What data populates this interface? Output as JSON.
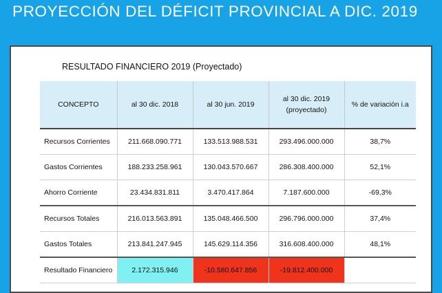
{
  "headline": "PROYECCIÓN DEL DÉFICIT PROVINCIAL A DIC. 2019",
  "table_title": "RESULTADO FINANCIERO 2019 (Proyectado)",
  "columns": [
    "CONCEPTO",
    "al 30 dic. 2018",
    "al 30 jun. 2019",
    "al 30 dic. 2019 (proyectado)",
    "% de variación i.a"
  ],
  "rows": [
    {
      "concepto": "Recursos Corrientes",
      "dic2018": "211.668.090.771",
      "jun2019": "133.513.988.531",
      "dic2019": "293.496.000.000",
      "var": "38,7%"
    },
    {
      "concepto": "Gastos Corrientes",
      "dic2018": "188.233.258.961",
      "jun2019": "130.043.570.667",
      "dic2019": "286.308.400.000",
      "var": "52,1%"
    },
    {
      "concepto": "Ahorro Corriente",
      "dic2018": "23.434.831.811",
      "jun2019": "3.470.417.864",
      "dic2019": "7.187.600.000",
      "var": "-69,3%"
    },
    {
      "concepto": "Recursos Totales",
      "dic2018": "216.013.563.891",
      "jun2019": "135.048.466.500",
      "dic2019": "296.796.000.000",
      "var": "37,4%"
    },
    {
      "concepto": "Gastos Totales",
      "dic2018": "213.841.247.945",
      "jun2019": "145.629.114.356",
      "dic2019": "316.608.400.000",
      "var": "48,1%"
    },
    {
      "concepto": "Resultado Financiero",
      "dic2018": "2.172.315.946",
      "jun2019": "-10.580.647.856",
      "dic2019": "-19.812.400.000",
      "var": ""
    }
  ],
  "colors": {
    "background": "#18a3e6",
    "header_fill": "#d7eef9",
    "positive_highlight": "#7ff1f2",
    "negative_highlight": "#f0341b"
  }
}
